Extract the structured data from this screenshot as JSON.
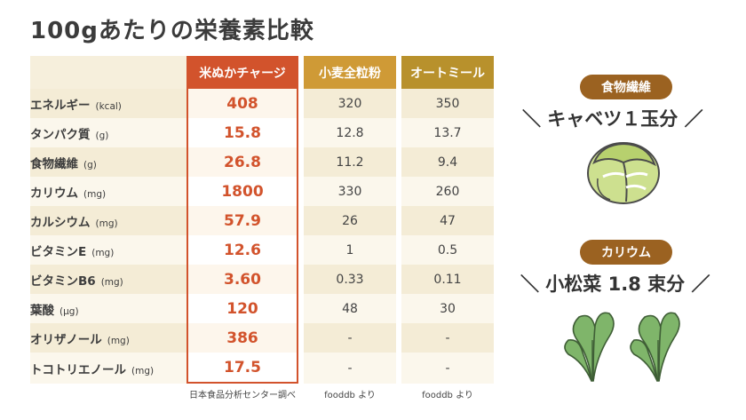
{
  "title": "100gあたりの栄養素比較",
  "columns": {
    "rice": "米ぬかチャージ",
    "wheat": "小麦全粒粉",
    "oat": "オートミール"
  },
  "rows": [
    {
      "name": "エネルギー",
      "unit": "(kcal)",
      "rice": "408",
      "wheat": "320",
      "oat": "350"
    },
    {
      "name": "タンパク質",
      "unit": "(g)",
      "rice": "15.8",
      "wheat": "12.8",
      "oat": "13.7"
    },
    {
      "name": "食物繊維",
      "unit": "(g)",
      "rice": "26.8",
      "wheat": "11.2",
      "oat": "9.4"
    },
    {
      "name": "カリウム",
      "unit": "(mg)",
      "rice": "1800",
      "wheat": "330",
      "oat": "260"
    },
    {
      "name": "カルシウム",
      "unit": "(mg)",
      "rice": "57.9",
      "wheat": "26",
      "oat": "47"
    },
    {
      "name": "ビタミンE",
      "unit": "(mg)",
      "rice": "12.6",
      "wheat": "1",
      "oat": "0.5"
    },
    {
      "name": "ビタミンB6",
      "unit": "(mg)",
      "rice": "3.60",
      "wheat": "0.33",
      "oat": "0.11"
    },
    {
      "name": "葉酸",
      "unit": "(μg)",
      "rice": "120",
      "wheat": "48",
      "oat": "30"
    },
    {
      "name": "オリザノール",
      "unit": "(mg)",
      "rice": "386",
      "wheat": "-",
      "oat": "-"
    },
    {
      "name": "トコトリエノール",
      "unit": "(mg)",
      "rice": "17.5",
      "wheat": "-",
      "oat": "-"
    }
  ],
  "sources": {
    "rice": "日本食品分析センター調べ",
    "wheat": "fooddb より",
    "oat": "fooddb より"
  },
  "callouts": {
    "fiber": {
      "label": "食物繊維",
      "text": "＼ キャベツ１玉分 ／",
      "icon": "cabbage-icon"
    },
    "potassium": {
      "label": "カリウム",
      "text": "＼ 小松菜 1.8 束分 ／",
      "icon": "komatsuna-icon"
    }
  },
  "colors": {
    "accent": "#d2532c",
    "wheat": "#cf9a36",
    "oat": "#b8912c",
    "pill": "#9b6221"
  }
}
